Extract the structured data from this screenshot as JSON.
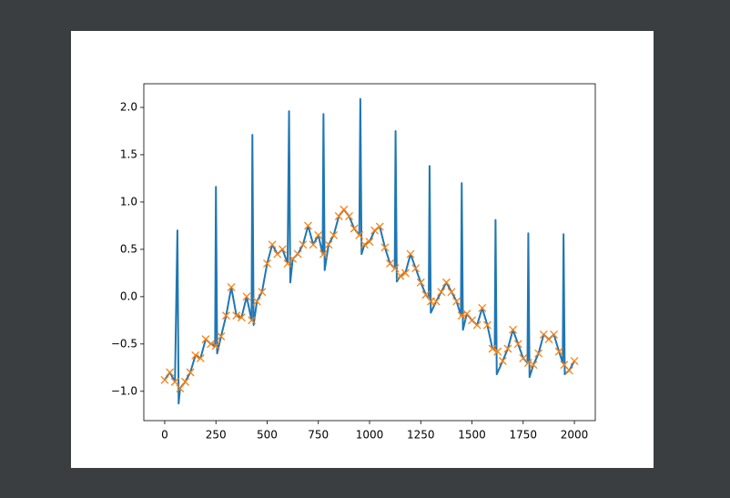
{
  "chart_data": {
    "type": "line",
    "xlim": [
      -102,
      2102
    ],
    "ylim": [
      -1.31,
      2.25
    ],
    "xticks": [
      0,
      250,
      500,
      750,
      1000,
      1250,
      1500,
      1750,
      2000
    ],
    "yticks": [
      {
        "value": -1.0,
        "label": "−1.0"
      },
      {
        "value": -0.5,
        "label": "−0.5"
      },
      {
        "value": 0,
        "label": "0.0"
      },
      {
        "value": 0.5,
        "label": "0.5"
      },
      {
        "value": 1.0,
        "label": "1.0"
      },
      {
        "value": 1.5,
        "label": "1.5"
      },
      {
        "value": 2.0,
        "label": "2.0"
      }
    ],
    "series": [
      {
        "color": "#1f77b4",
        "marker": "none",
        "x": [
          0,
          25,
          50,
          62,
          68,
          75,
          100,
          125,
          150,
          175,
          200,
          225,
          246,
          250,
          256,
          275,
          300,
          325,
          350,
          375,
          400,
          424,
          428,
          434,
          450,
          475,
          500,
          525,
          550,
          575,
          600,
          607,
          613,
          625,
          650,
          675,
          700,
          725,
          750,
          771,
          775,
          781,
          800,
          825,
          850,
          875,
          900,
          925,
          950,
          955,
          961,
          975,
          1000,
          1025,
          1050,
          1075,
          1100,
          1123,
          1127,
          1133,
          1150,
          1175,
          1200,
          1225,
          1250,
          1275,
          1289,
          1293,
          1299,
          1325,
          1350,
          1375,
          1400,
          1425,
          1446,
          1450,
          1456,
          1475,
          1500,
          1525,
          1550,
          1575,
          1600,
          1611,
          1615,
          1621,
          1650,
          1675,
          1700,
          1725,
          1750,
          1771,
          1775,
          1781,
          1800,
          1825,
          1850,
          1875,
          1900,
          1925,
          1943,
          1947,
          1953,
          1975,
          2000
        ],
        "values": [
          -0.88,
          -0.8,
          -0.9,
          0.7,
          -1.13,
          -0.97,
          -0.9,
          -0.8,
          -0.62,
          -0.65,
          -0.45,
          -0.5,
          -0.52,
          1.16,
          -0.6,
          -0.42,
          -0.2,
          0.1,
          -0.2,
          -0.22,
          0.0,
          -0.25,
          1.71,
          -0.3,
          -0.05,
          0.05,
          0.35,
          0.55,
          0.45,
          0.5,
          0.35,
          1.96,
          0.15,
          0.4,
          0.45,
          0.55,
          0.75,
          0.55,
          0.65,
          0.45,
          1.93,
          0.28,
          0.55,
          0.65,
          0.85,
          0.92,
          0.85,
          0.72,
          0.65,
          2.09,
          0.45,
          0.55,
          0.58,
          0.7,
          0.74,
          0.52,
          0.35,
          0.3,
          1.75,
          0.16,
          0.22,
          0.25,
          0.45,
          0.3,
          0.15,
          0.02,
          -0.02,
          1.38,
          -0.17,
          -0.05,
          0.05,
          0.15,
          0.05,
          -0.05,
          -0.2,
          1.2,
          -0.35,
          -0.18,
          -0.25,
          -0.3,
          -0.12,
          -0.3,
          -0.55,
          -0.56,
          0.81,
          -0.82,
          -0.68,
          -0.55,
          -0.35,
          -0.5,
          -0.65,
          -0.7,
          0.67,
          -0.85,
          -0.72,
          -0.6,
          -0.4,
          -0.45,
          -0.4,
          -0.58,
          -0.7,
          0.66,
          -0.82,
          -0.78,
          -0.68
        ]
      },
      {
        "color": "#ff7f0e",
        "marker": "x",
        "x": [
          0,
          25,
          50,
          75,
          100,
          125,
          150,
          175,
          200,
          225,
          250,
          275,
          300,
          325,
          350,
          375,
          400,
          425,
          450,
          475,
          500,
          525,
          550,
          575,
          600,
          625,
          650,
          675,
          700,
          725,
          750,
          775,
          800,
          825,
          850,
          875,
          900,
          925,
          950,
          975,
          1000,
          1025,
          1050,
          1075,
          1100,
          1125,
          1150,
          1175,
          1200,
          1225,
          1250,
          1275,
          1300,
          1325,
          1350,
          1375,
          1400,
          1425,
          1450,
          1475,
          1500,
          1525,
          1550,
          1575,
          1600,
          1625,
          1650,
          1675,
          1700,
          1725,
          1750,
          1775,
          1800,
          1825,
          1850,
          1875,
          1900,
          1925,
          1950,
          1975,
          2000
        ],
        "values": [
          -0.88,
          -0.8,
          -0.9,
          -0.97,
          -0.9,
          -0.8,
          -0.62,
          -0.65,
          -0.45,
          -0.5,
          -0.52,
          -0.42,
          -0.2,
          0.1,
          -0.2,
          -0.22,
          0.0,
          -0.25,
          -0.05,
          0.05,
          0.35,
          0.55,
          0.45,
          0.5,
          0.35,
          0.4,
          0.45,
          0.55,
          0.75,
          0.55,
          0.65,
          0.45,
          0.55,
          0.65,
          0.85,
          0.92,
          0.85,
          0.72,
          0.65,
          0.55,
          0.58,
          0.7,
          0.74,
          0.52,
          0.35,
          0.3,
          0.22,
          0.25,
          0.45,
          0.3,
          0.15,
          0.02,
          -0.05,
          -0.05,
          0.05,
          0.15,
          0.05,
          -0.05,
          -0.2,
          -0.18,
          -0.25,
          -0.3,
          -0.12,
          -0.3,
          -0.55,
          -0.58,
          -0.68,
          -0.55,
          -0.35,
          -0.5,
          -0.65,
          -0.7,
          -0.72,
          -0.6,
          -0.4,
          -0.45,
          -0.4,
          -0.58,
          -0.72,
          -0.78,
          -0.68
        ]
      }
    ]
  }
}
